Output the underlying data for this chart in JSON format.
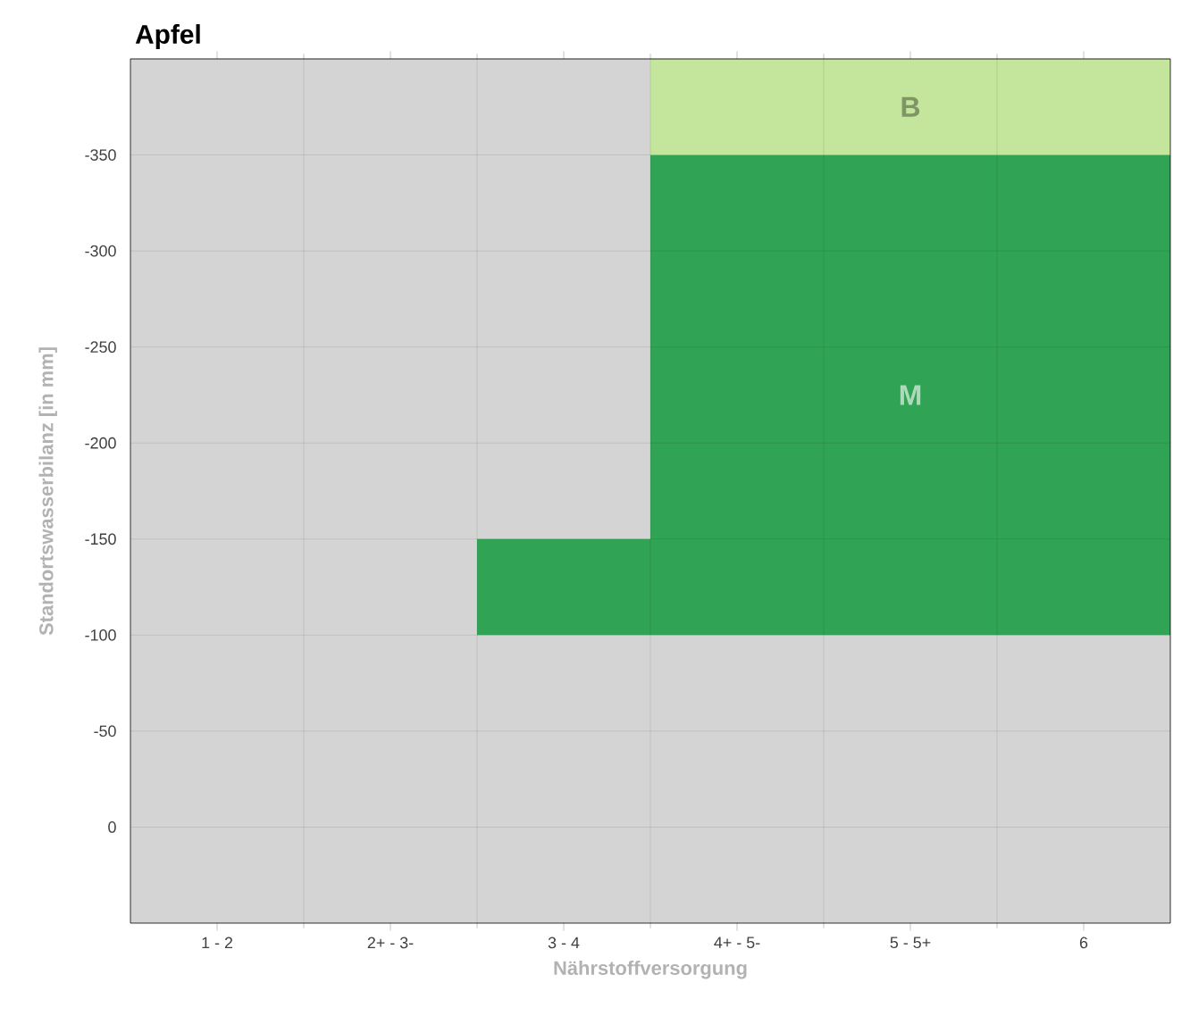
{
  "chart_data": {
    "type": "bar",
    "title": "Apfel",
    "xlabel": "Nährstoffversorgung",
    "ylabel": "Standortswasserbilanz [in mm]",
    "categories": [
      "1 - 2",
      "2+ - 3-",
      "3 - 4",
      "4+ - 5-",
      "5 - 5+",
      "6"
    ],
    "series": [
      {
        "name": "M",
        "color": "#31a354",
        "base": [
          null,
          null,
          -100,
          -100,
          -100,
          -100
        ],
        "values": [
          null,
          null,
          -50,
          -250,
          -250,
          -250
        ]
      },
      {
        "name": "B",
        "color": "#c3e59c",
        "base": [
          null,
          null,
          null,
          -350,
          -350,
          -350
        ],
        "values": [
          null,
          null,
          null,
          -50,
          -50,
          -50
        ]
      }
    ],
    "ylim": [
      50,
      -400
    ],
    "yticks": [
      0,
      -50,
      -100,
      -150,
      -200,
      -250,
      -300,
      -350
    ],
    "grid": true
  }
}
